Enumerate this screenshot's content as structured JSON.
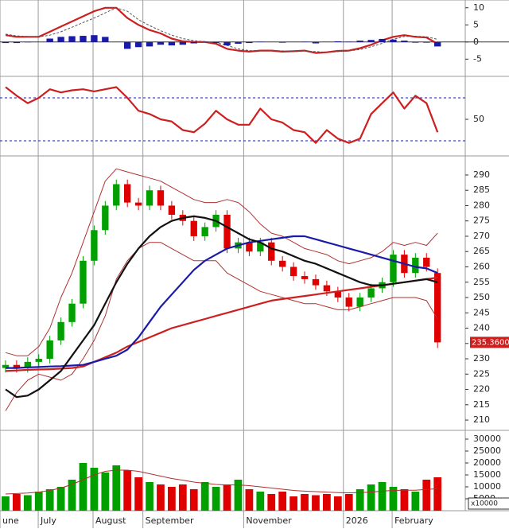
{
  "chart_data": [
    {
      "type": "macd",
      "ylim": [
        -9.8,
        11.8
      ],
      "yticks": [
        10,
        5,
        0,
        -5
      ],
      "series": [
        {
          "name": "MACD",
          "kind": "line",
          "color": "#cc1f1f",
          "values": [
            2,
            1.5,
            1.5,
            1.5,
            3,
            4.5,
            6,
            7.5,
            9,
            10,
            10,
            7,
            5,
            3.5,
            2.5,
            1,
            0.2,
            0,
            0,
            -0.5,
            -2,
            -2.5,
            -2.8,
            -2.5,
            -2.5,
            -2.8,
            -2.7,
            -2.5,
            -3.2,
            -3,
            -2.6,
            -2.5,
            -1.8,
            -0.8,
            0.5,
            1.5,
            2,
            1.5,
            1.3,
            -0.5
          ]
        },
        {
          "name": "Signal",
          "kind": "dashed",
          "color": "#555555",
          "values": [
            2.3,
            1.8,
            1.6,
            1.5,
            2,
            3,
            4.3,
            5.7,
            7,
            8.5,
            10,
            9,
            6.5,
            4.8,
            3.3,
            2,
            1,
            0.4,
            0.1,
            -0.2,
            -1,
            -2,
            -2.5,
            -2.6,
            -2.5,
            -2.6,
            -2.7,
            -2.6,
            -2.8,
            -3,
            -2.8,
            -2.6,
            -2.2,
            -1.4,
            -0.4,
            0.8,
            1.6,
            1.7,
            1.5,
            0.8
          ]
        },
        {
          "name": "Histogram",
          "kind": "bar",
          "color": "#1a1aa8",
          "values": [
            -0.3,
            -0.3,
            -0.1,
            0,
            1,
            1.5,
            1.7,
            1.8,
            2,
            1.5,
            0,
            -2,
            -1.5,
            -1.3,
            -0.8,
            -1,
            -0.8,
            -0.4,
            -0.1,
            -0.3,
            -1,
            -0.5,
            -0.3,
            0.1,
            0,
            -0.2,
            0,
            0.1,
            -0.4,
            0,
            0.2,
            0.1,
            0.4,
            0.6,
            0.9,
            0.7,
            0.4,
            -0.2,
            -0.2,
            -1.3
          ]
        }
      ]
    },
    {
      "type": "line",
      "ylim": [
        16.7,
        88.5
      ],
      "yticks": [
        50
      ],
      "reference_lines": [
        30,
        70
      ],
      "series": [
        {
          "name": "RSI",
          "kind": "line",
          "color": "#cc1f1f",
          "values": [
            80,
            72,
            65,
            70,
            78,
            75,
            77,
            78,
            76,
            78,
            80,
            70,
            58,
            55,
            50,
            48,
            40,
            38,
            46,
            58,
            50,
            45,
            45,
            60,
            50,
            47,
            40,
            38,
            28,
            40,
            32,
            28,
            32,
            55,
            65,
            75,
            60,
            72,
            65,
            38
          ]
        }
      ]
    },
    {
      "type": "candlestick",
      "ylim": [
        206.9,
        295.7
      ],
      "yticks": [
        210,
        215,
        220,
        225,
        230,
        235,
        240,
        245,
        250,
        255,
        260,
        265,
        270,
        275,
        280,
        285,
        290
      ],
      "up_color": "#00a000",
      "down_color": "#e00000",
      "last_label": "235.3600",
      "open": [
        227,
        228,
        227,
        229,
        230,
        236,
        242,
        248,
        262,
        272,
        280,
        287,
        281,
        280,
        285,
        280,
        277,
        275,
        270,
        273,
        277,
        266,
        268,
        265,
        268,
        262,
        260,
        257,
        256,
        254,
        252,
        250,
        247,
        250,
        253,
        255,
        264,
        258,
        263,
        258
      ],
      "high": [
        229.5,
        229.5,
        230.5,
        231.5,
        237.5,
        243.5,
        249.5,
        263.5,
        273.5,
        281.5,
        288.5,
        288.5,
        282.5,
        286.5,
        286.5,
        281.5,
        278.5,
        276.5,
        274.5,
        278.5,
        278.5,
        269.5,
        269.5,
        269.5,
        269.5,
        263.5,
        261.5,
        258.5,
        257.5,
        255.5,
        253.5,
        251.5,
        251.5,
        254.5,
        256.5,
        265.5,
        265.5,
        264.5,
        264.5,
        259.5
      ],
      "low": [
        225.5,
        225.5,
        225.5,
        227.5,
        228.5,
        234.5,
        240.5,
        246.5,
        260.5,
        270.5,
        278.5,
        279.5,
        278.5,
        278.5,
        278.5,
        275.5,
        273.5,
        268.5,
        268.5,
        271.5,
        264.5,
        264.5,
        263.5,
        263.5,
        260.5,
        258.5,
        255.5,
        254.5,
        252.5,
        250.5,
        248.5,
        245.5,
        245.5,
        248.5,
        251.5,
        253.5,
        256.5,
        256.5,
        258.5,
        233.5
      ],
      "close": [
        228,
        227,
        229,
        230,
        236,
        242,
        248,
        262,
        272,
        280,
        287,
        281,
        280,
        285,
        280,
        277,
        275,
        270,
        273,
        277,
        266,
        268,
        265,
        268,
        262,
        260,
        257,
        256,
        254,
        252,
        250,
        247,
        250,
        253,
        255,
        264,
        258,
        263,
        260,
        235.36
      ],
      "series": [
        {
          "name": "Upper band",
          "kind": "thin",
          "color": "#b03030",
          "values": [
            232,
            231,
            231,
            234,
            240,
            250,
            258,
            268,
            278,
            288,
            292,
            291,
            290,
            289,
            288,
            286,
            284,
            282,
            281,
            281,
            282,
            281,
            278,
            274,
            271,
            270,
            268,
            266,
            265,
            264,
            262,
            261,
            262,
            263,
            265,
            268,
            267,
            268,
            267,
            271
          ]
        },
        {
          "name": "Lower band",
          "kind": "thin",
          "color": "#b03030",
          "values": [
            213,
            219,
            223,
            225,
            224,
            223,
            225,
            230,
            236,
            244,
            256,
            262,
            266,
            268,
            268,
            266,
            264,
            262,
            262,
            262,
            258,
            256,
            254,
            252,
            251,
            250,
            249,
            248,
            248,
            247,
            246,
            246,
            247,
            248,
            249,
            250,
            250,
            250,
            249,
            243
          ]
        },
        {
          "name": "MA 200",
          "kind": "line",
          "color": "#cc2020",
          "values": [
            226,
            226.2,
            226.4,
            226.5,
            226.6,
            226.8,
            227,
            227.5,
            229,
            230.5,
            232,
            234,
            235.5,
            237,
            238.5,
            240,
            241,
            242,
            243,
            244,
            245,
            246,
            247,
            248,
            249,
            249.5,
            250,
            250.5,
            251,
            251.5,
            252,
            252.5,
            253,
            253.5,
            254,
            254.5,
            255,
            255.5,
            256,
            256.5
          ]
        },
        {
          "name": "MA 100",
          "kind": "line",
          "color": "#1a1aa8",
          "values": [
            227,
            227,
            227.2,
            227.3,
            227.5,
            227.6,
            227.8,
            228,
            229,
            230,
            231,
            233,
            237,
            242,
            247,
            251,
            255,
            259,
            262,
            264,
            266,
            267,
            268,
            268.5,
            269,
            269.5,
            270,
            270,
            269,
            268,
            267,
            266,
            265,
            264,
            263,
            262,
            261,
            260,
            259.5,
            258
          ]
        },
        {
          "name": "MA 50",
          "kind": "line",
          "color": "#111111",
          "values": [
            220,
            217.5,
            218,
            220,
            223,
            226,
            231,
            236,
            241,
            248,
            255,
            261,
            266,
            270,
            273,
            275,
            276,
            276.5,
            276,
            275,
            273,
            271,
            269,
            268,
            266,
            265,
            263.5,
            262,
            261,
            259.5,
            258,
            256.5,
            255,
            254,
            254,
            254.5,
            255,
            255.5,
            256,
            255
          ]
        }
      ]
    },
    {
      "type": "bar",
      "ylim": [
        0,
        33000
      ],
      "yticks": [
        5000,
        10000,
        15000,
        20000,
        25000,
        30000
      ],
      "unit_label": "x10000",
      "xlim": [
        -0.5,
        41.5
      ],
      "xticks": [
        {
          "value": -0.5,
          "label": "une"
        },
        {
          "value": 2.95,
          "label": "July"
        },
        {
          "value": 7.9,
          "label": "August"
        },
        {
          "value": 12.4,
          "label": "September"
        },
        {
          "value": 21.5,
          "label": "November"
        },
        {
          "value": 30.5,
          "label": "2026"
        },
        {
          "value": 34.9,
          "label": "February"
        }
      ],
      "values": [
        6000,
        7000,
        6500,
        8000,
        9000,
        10000,
        13000,
        20000,
        18000,
        16000,
        19000,
        17000,
        14000,
        12000,
        11000,
        10000,
        11000,
        9000,
        12000,
        10000,
        11000,
        13000,
        9000,
        8000,
        7000,
        8000,
        6000,
        7000,
        6500,
        7000,
        6000,
        7000,
        9000,
        11000,
        12000,
        10000,
        9000,
        8000,
        13000,
        14000
      ],
      "series": [
        {
          "name": "Volume MA",
          "kind": "thin",
          "color": "#b03030",
          "values": [
            7000,
            7200,
            7400,
            7800,
            8500,
            9500,
            11000,
            13000,
            15000,
            16500,
            17000,
            17000,
            16500,
            15500,
            14500,
            13500,
            12800,
            12000,
            11500,
            11000,
            10800,
            10800,
            10500,
            10000,
            9500,
            9000,
            8500,
            8200,
            8000,
            7800,
            7600,
            7500,
            7600,
            7800,
            8200,
            8500,
            8600,
            8600,
            8900,
            9200
          ]
        }
      ]
    }
  ]
}
